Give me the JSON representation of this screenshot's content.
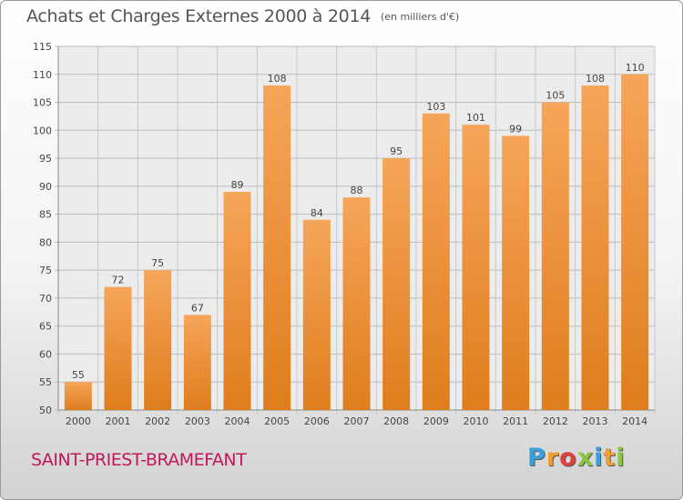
{
  "chart_data": {
    "type": "bar",
    "title": "Achats et Charges Externes 2000 à 2014",
    "subtitle": "(en milliers d'€)",
    "categories": [
      "2000",
      "2001",
      "2002",
      "2003",
      "2004",
      "2005",
      "2006",
      "2007",
      "2008",
      "2009",
      "2010",
      "2011",
      "2012",
      "2013",
      "2014"
    ],
    "values": [
      55,
      72,
      75,
      67,
      89,
      108,
      84,
      88,
      95,
      103,
      101,
      99,
      105,
      108,
      110
    ],
    "data_labels": [
      "55",
      "72",
      "75",
      "67",
      "89",
      "108",
      "84",
      "88",
      "95",
      "103",
      "101",
      "99",
      "105",
      "108",
      "110"
    ],
    "ylim": [
      50,
      115
    ],
    "yticks": [
      50,
      55,
      60,
      65,
      70,
      75,
      80,
      85,
      90,
      95,
      100,
      105,
      110,
      115
    ],
    "grid": true,
    "bar_color_top": "#f6a55a",
    "bar_color_bottom": "#df7d1d",
    "xlabel": "",
    "ylabel": ""
  },
  "footer": {
    "commune": "SAINT-PRIEST-BRAMEFANT",
    "logo_letters": [
      "P",
      "r",
      "o",
      "x",
      "i",
      "t",
      "i"
    ],
    "logo_colors": [
      "#3aa0dc",
      "#f0a030",
      "#e04040",
      "#8cc63f",
      "#3aa0dc",
      "#f0a030",
      "#8cc63f"
    ]
  }
}
